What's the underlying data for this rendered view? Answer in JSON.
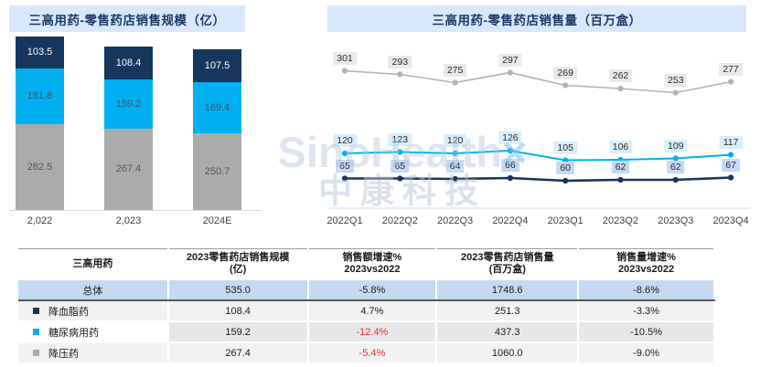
{
  "watermark": {
    "brand": "SinoHealth",
    "star": "×",
    "brand_cn": "中康科技"
  },
  "chart_data": [
    {
      "type": "bar",
      "variant": "stacked",
      "title": "三高用药-零售药店销售规模（亿）",
      "categories": [
        "2,022",
        "2,023",
        "2024E"
      ],
      "series": [
        {
          "name": "降血脂药",
          "color": "#17365d",
          "label_color": "#ffffff",
          "values": [
            103.5,
            108.4,
            107.5
          ]
        },
        {
          "name": "糖尿病用药",
          "color": "#00b0f0",
          "label_color": "#44546a",
          "values": [
            181.8,
            159.2,
            169.4
          ]
        },
        {
          "name": "降压药",
          "color": "#ababab",
          "label_color": "#595959",
          "values": [
            282.5,
            267.4,
            250.7
          ]
        }
      ],
      "legend_position": "none",
      "grid": false
    },
    {
      "type": "line",
      "title": "三高用药-零售药店销售量（百万盒）",
      "x": [
        "2022Q1",
        "2022Q2",
        "2022Q3",
        "2022Q4",
        "2023Q1",
        "2023Q2",
        "2023Q3",
        "2023Q4"
      ],
      "series": [
        {
          "name": "降压药",
          "color": "#b3b3b3",
          "label_bg": "#e9e9e9",
          "stroke_width": 1.6,
          "values": [
            301,
            293,
            275,
            297,
            269,
            262,
            253,
            277
          ]
        },
        {
          "name": "糖尿病用药",
          "color": "#00b0f0",
          "label_bg": "#d9eefb",
          "stroke_width": 2,
          "values": [
            120,
            123,
            120,
            126,
            105,
            106,
            109,
            117
          ]
        },
        {
          "name": "降血脂药",
          "color": "#17365d",
          "label_bg": "#c5d9f3",
          "stroke_width": 2.6,
          "values": [
            65,
            65,
            64,
            66,
            60,
            62,
            62,
            67
          ]
        }
      ],
      "ylim": [
        0,
        380
      ],
      "grid": false,
      "legend_position": "none"
    }
  ],
  "table": {
    "headers": [
      {
        "l1": "三高用药",
        "l2": ""
      },
      {
        "l1": "2023零售药店销售规模",
        "l2": "(亿)"
      },
      {
        "l1": "销售额增速%",
        "l2": "2023vs2022"
      },
      {
        "l1": "2023零售药店销售量",
        "l2": "(百万盒)"
      },
      {
        "l1": "销售量增速%",
        "l2": "2023vs2022"
      }
    ],
    "rows": [
      {
        "name": "总体",
        "marker": null,
        "scale": "535.0",
        "amount_growth": "-5.8%",
        "amount_red": false,
        "volume": "1748.6",
        "volume_growth": "-8.6%",
        "total": true
      },
      {
        "name": "降血脂药",
        "marker": "#17365d",
        "scale": "108.4",
        "amount_growth": "4.7%",
        "amount_red": false,
        "volume": "251.3",
        "volume_growth": "-3.3%",
        "total": false
      },
      {
        "name": "糖尿病用药",
        "marker": "#00b0f0",
        "scale": "159.2",
        "amount_growth": "-12.4%",
        "amount_red": true,
        "volume": "437.3",
        "volume_growth": "-10.5%",
        "total": false
      },
      {
        "name": "降压药",
        "marker": "#ababab",
        "scale": "267.4",
        "amount_growth": "-5.4%",
        "amount_red": true,
        "volume": "1060.0",
        "volume_growth": "-9.0%",
        "total": false
      }
    ]
  }
}
